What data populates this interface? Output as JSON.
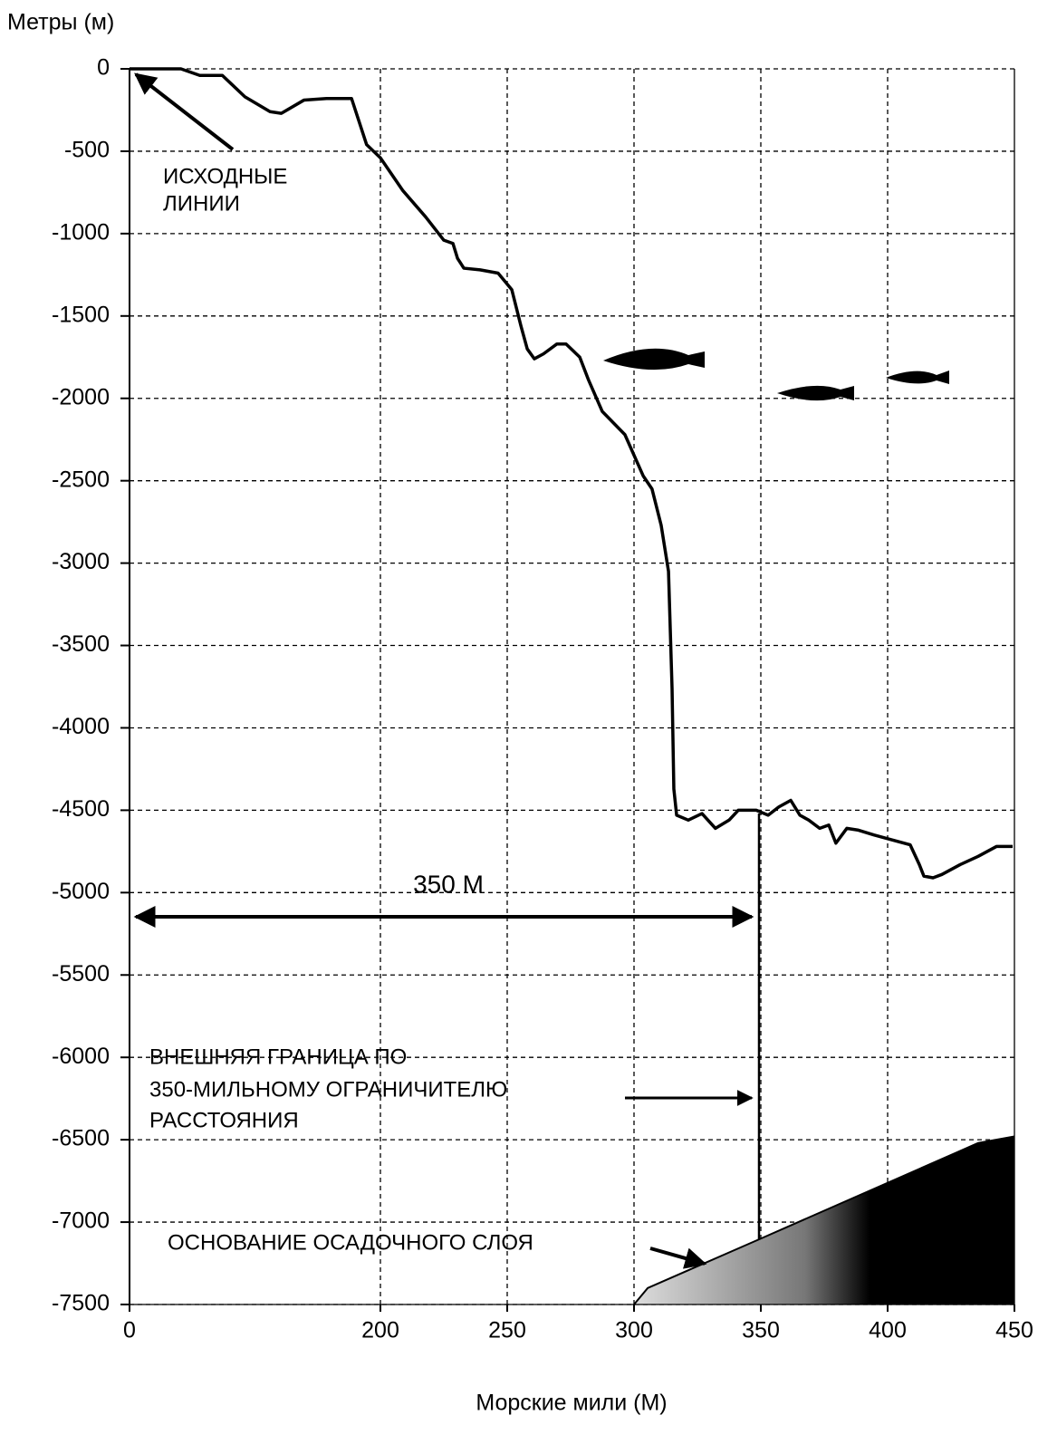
{
  "chart_data": {
    "type": "line",
    "y_label": "Метры (м)",
    "x_label": "Морские мили (М)",
    "xlim": [
      0,
      450
    ],
    "ylim": [
      -7500,
      0
    ],
    "xticks": [
      0,
      200,
      250,
      300,
      350,
      400,
      450
    ],
    "yticks": [
      0,
      -500,
      -1000,
      -1500,
      -2000,
      -2500,
      -3000,
      -3500,
      -4000,
      -4500,
      -5000,
      -5500,
      -6000,
      -6500,
      -7000,
      -7500
    ],
    "grid": true,
    "series": [
      {
        "color": "#000000",
        "x": [
          0,
          41,
          56,
          74,
          92,
          112,
          121,
          139,
          157,
          177,
          189,
          200,
          208.9,
          217.9,
          225,
          228.6,
          230.4,
          232.9,
          239.3,
          246.4,
          251.8,
          255.4,
          257.9,
          260.7,
          264.3,
          269.6,
          273.2,
          278.6,
          282.1,
          287.5,
          296.4,
          303.6,
          307.1,
          310.7,
          313.6,
          315,
          315.7,
          316.8,
          321.4,
          326.8,
          332.1,
          337.5,
          341.1,
          348.2,
          352.9,
          357.1,
          361.8,
          365.4,
          368.9,
          373.2,
          376.8,
          379.6,
          383.9,
          388.2,
          394.6,
          401.8,
          408.9,
          412.5,
          414.3,
          417.9,
          421.4,
          428.6,
          435.7,
          442.9,
          449.3
        ],
        "values": [
          0,
          0,
          -40,
          -40,
          -170,
          -260,
          -270,
          -190,
          -180,
          -180,
          -460,
          -540,
          -740,
          -900,
          -1040,
          -1060,
          -1150,
          -1210,
          -1220,
          -1240,
          -1340,
          -1560,
          -1700,
          -1760,
          -1730,
          -1670,
          -1670,
          -1750,
          -1890,
          -2080,
          -2220,
          -2470,
          -2550,
          -2770,
          -3050,
          -3760,
          -4370,
          -4530,
          -4560,
          -4520,
          -4610,
          -4560,
          -4500,
          -4500,
          -4530,
          -4480,
          -4440,
          -4530,
          -4560,
          -4610,
          -4590,
          -4700,
          -4610,
          -4620,
          -4650,
          -4680,
          -4710,
          -4830,
          -4900,
          -4910,
          -4890,
          -4830,
          -4780,
          -4720,
          -4720
        ]
      },
      {
        "color": "#000000",
        "fill": true,
        "x": [
          300,
          305.4,
          350,
          435.7,
          450
        ],
        "values": [
          -7500,
          -7400,
          -7100,
          -6520,
          -6480
        ]
      }
    ],
    "annotations": {
      "baselines": [
        "ИСХОДНЫЕ",
        "ЛИНИИ"
      ],
      "distance": "350 M",
      "outer_limit": [
        "ВНЕШНЯЯ ГРАНИЦА ПО",
        "350-МИЛЬНОМУ ОГРАНИЧИТЕЛЮ",
        "РАССТОЯНИЯ"
      ],
      "sediment_base": "ОСНОВАНИЕ ОСАДОЧНОГО СЛОЯ"
    }
  }
}
